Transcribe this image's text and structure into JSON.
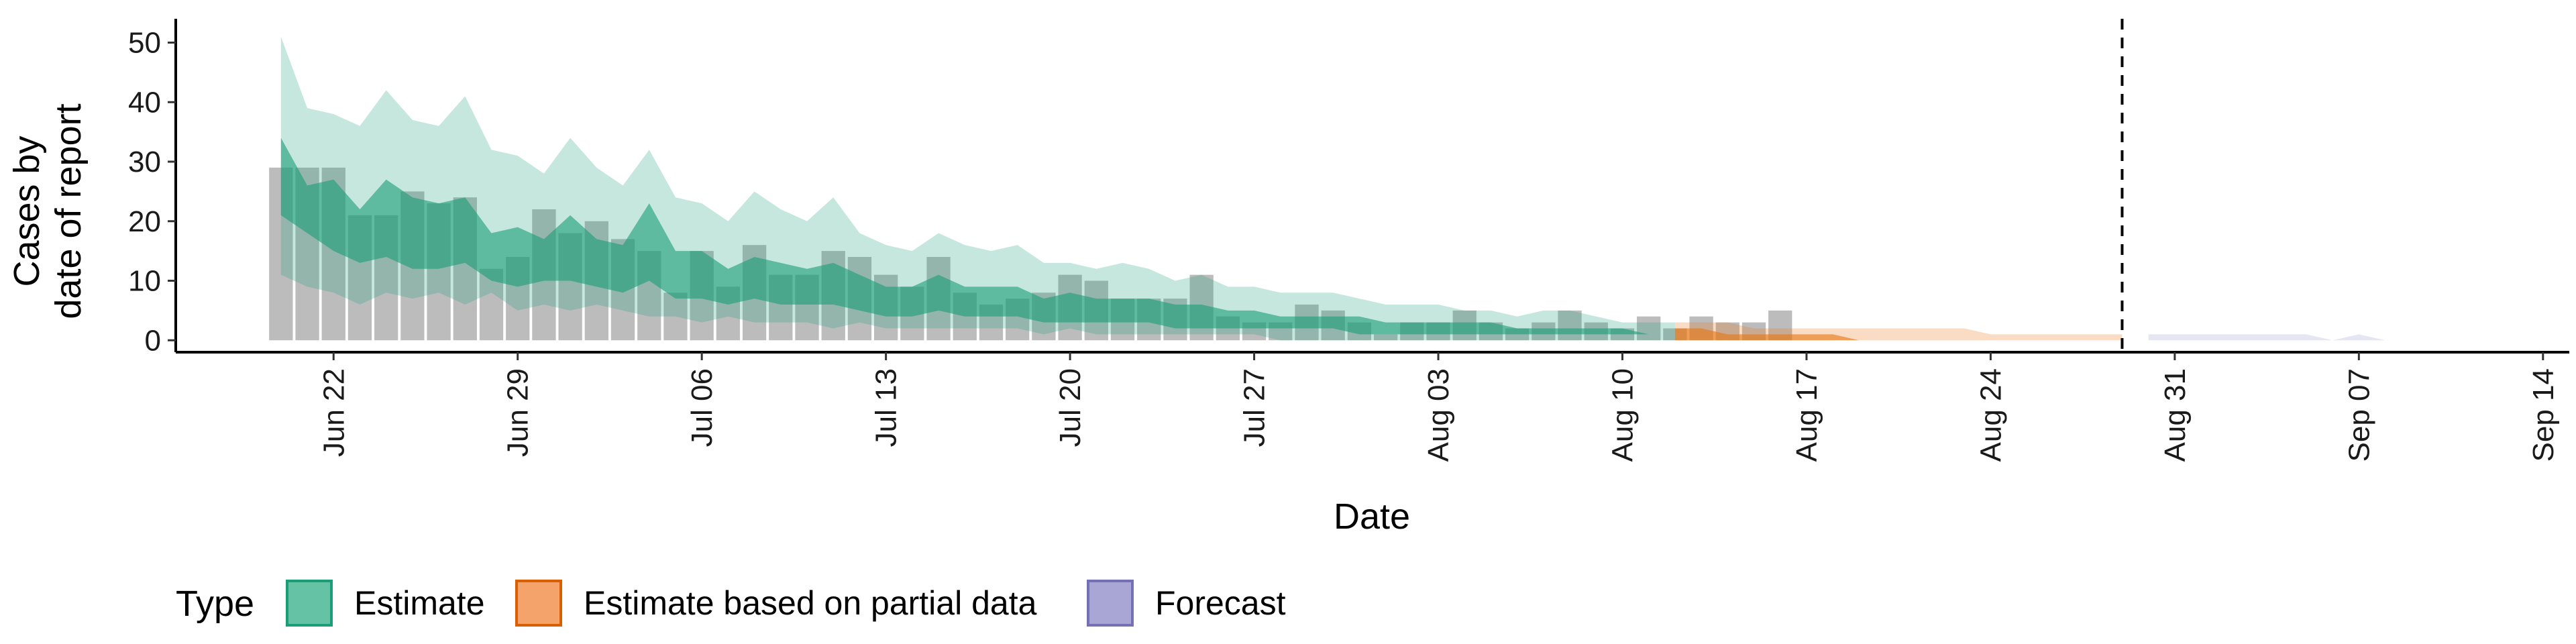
{
  "chart_data": {
    "type": "area",
    "xlabel": "Date",
    "ylabel": [
      "Cases by",
      "date of report"
    ],
    "ylim": [
      -2,
      54
    ],
    "yticks": [
      0,
      10,
      20,
      30,
      40,
      50
    ],
    "xlim": [
      "2020-06-16",
      "2020-09-15"
    ],
    "xticks": [
      "2020-06-22",
      "2020-06-29",
      "2020-07-06",
      "2020-07-13",
      "2020-07-20",
      "2020-07-27",
      "2020-08-03",
      "2020-08-10",
      "2020-08-17",
      "2020-08-24",
      "2020-08-31",
      "2020-09-07",
      "2020-09-14"
    ],
    "xtick_labels": [
      "Jun 22",
      "Jun 29",
      "Jul 06",
      "Jul 13",
      "Jul 20",
      "Jul 27",
      "Aug 03",
      "Aug 10",
      "Aug 17",
      "Aug 24",
      "Aug 31",
      "Sep 07",
      "Sep 14"
    ],
    "vline_date": "2020-08-29",
    "grid": false,
    "legend": {
      "title": "Type",
      "position": "bottom-left",
      "items": [
        {
          "label": "Estimate",
          "fill": "#66c2a5",
          "stroke": "#1b9e77"
        },
        {
          "label": "Estimate based on partial data",
          "fill": "#f4a46a",
          "stroke": "#d95f02"
        },
        {
          "label": "Forecast",
          "fill": "#a9a6d6",
          "stroke": "#7570b3"
        }
      ]
    },
    "colors": {
      "estimate": "#1b9e77",
      "partial": "#e6750f",
      "forecast": "#9d9ad0",
      "bars": "#a6a6a6"
    },
    "reported_cases": {
      "start": "2020-06-20",
      "values": [
        29,
        29,
        29,
        21,
        21,
        25,
        23,
        24,
        12,
        14,
        22,
        18,
        20,
        17,
        15,
        8,
        15,
        9,
        16,
        11,
        11,
        15,
        14,
        11,
        9,
        14,
        8,
        6,
        7,
        8,
        11,
        10,
        7,
        7,
        7,
        11,
        4,
        3,
        3,
        6,
        5,
        3,
        1,
        3,
        3,
        5,
        3,
        2,
        3,
        5,
        3,
        2,
        4,
        2,
        4,
        3,
        3,
        5
      ]
    },
    "series": [
      {
        "name": "Estimate",
        "start": "2020-06-20",
        "outer_low": [
          11,
          9,
          8,
          6,
          8,
          7,
          8,
          6,
          8,
          5,
          6,
          5,
          6,
          5,
          4,
          4,
          3,
          4,
          3,
          3,
          3,
          2,
          3,
          2,
          2,
          2,
          2,
          2,
          2,
          1,
          2,
          1,
          1,
          1,
          1,
          1,
          1,
          1,
          0,
          0,
          0,
          0,
          0,
          0,
          0,
          0,
          0,
          0,
          0,
          0,
          0,
          0,
          0,
          0
        ],
        "outer_high": [
          51,
          39,
          38,
          36,
          42,
          37,
          36,
          41,
          32,
          31,
          28,
          34,
          29,
          26,
          32,
          24,
          23,
          20,
          25,
          22,
          20,
          24,
          18,
          16,
          15,
          18,
          16,
          15,
          16,
          13,
          13,
          12,
          13,
          12,
          10,
          11,
          9,
          9,
          8,
          8,
          8,
          7,
          6,
          6,
          6,
          5,
          5,
          4,
          5,
          5,
          4,
          3,
          3,
          3
        ],
        "inner_low": [
          21,
          18,
          15,
          13,
          14,
          12,
          12,
          13,
          10,
          9,
          10,
          10,
          9,
          8,
          10,
          7,
          7,
          6,
          7,
          6,
          6,
          6,
          5,
          4,
          4,
          5,
          4,
          4,
          4,
          3,
          3,
          3,
          3,
          3,
          2,
          2,
          2,
          2,
          2,
          2,
          2,
          1,
          1,
          1,
          1,
          1,
          1,
          1,
          1,
          1,
          1,
          1,
          1,
          1
        ],
        "inner_high": [
          34,
          26,
          27,
          22,
          27,
          24,
          23,
          24,
          18,
          19,
          17,
          21,
          17,
          16,
          23,
          15,
          15,
          12,
          14,
          13,
          12,
          13,
          11,
          9,
          9,
          11,
          9,
          9,
          9,
          7,
          8,
          7,
          7,
          7,
          6,
          6,
          5,
          5,
          4,
          4,
          4,
          4,
          3,
          3,
          3,
          3,
          3,
          2,
          2,
          2,
          2,
          2,
          1,
          1
        ]
      },
      {
        "name": "Estimate based on partial data",
        "start": "2020-08-12",
        "outer_low": [
          0,
          0,
          0,
          0,
          0,
          0,
          0,
          0,
          0,
          0,
          0,
          0,
          0,
          0,
          0,
          0,
          0,
          0
        ],
        "outer_high": [
          3,
          3,
          3,
          2,
          2,
          2,
          2,
          2,
          2,
          2,
          2,
          2,
          1,
          1,
          1,
          1,
          1,
          1
        ],
        "inner_low": [
          0,
          0,
          0,
          0,
          0,
          0,
          0,
          0,
          0,
          0,
          0,
          0,
          0,
          0,
          0,
          0,
          0,
          0
        ],
        "inner_high": [
          2,
          2,
          1,
          1,
          1,
          1,
          1,
          0,
          0,
          0,
          0,
          0,
          0,
          0,
          0,
          0,
          0,
          0
        ]
      },
      {
        "name": "Forecast",
        "start": "2020-08-30",
        "outer_low": [
          0,
          0,
          0,
          0,
          0,
          0,
          0,
          0,
          0,
          0,
          0,
          0,
          0,
          0
        ],
        "outer_high": [
          1,
          1,
          1,
          1,
          1,
          1,
          1,
          0,
          1,
          0,
          0,
          0,
          0,
          0
        ],
        "inner_low": [
          0,
          0,
          0,
          0,
          0,
          0,
          0,
          0,
          0,
          0,
          0,
          0,
          0,
          0
        ],
        "inner_high": [
          0,
          0,
          0,
          0,
          0,
          0,
          0,
          0,
          0,
          0,
          0,
          0,
          0,
          0
        ]
      }
    ]
  }
}
